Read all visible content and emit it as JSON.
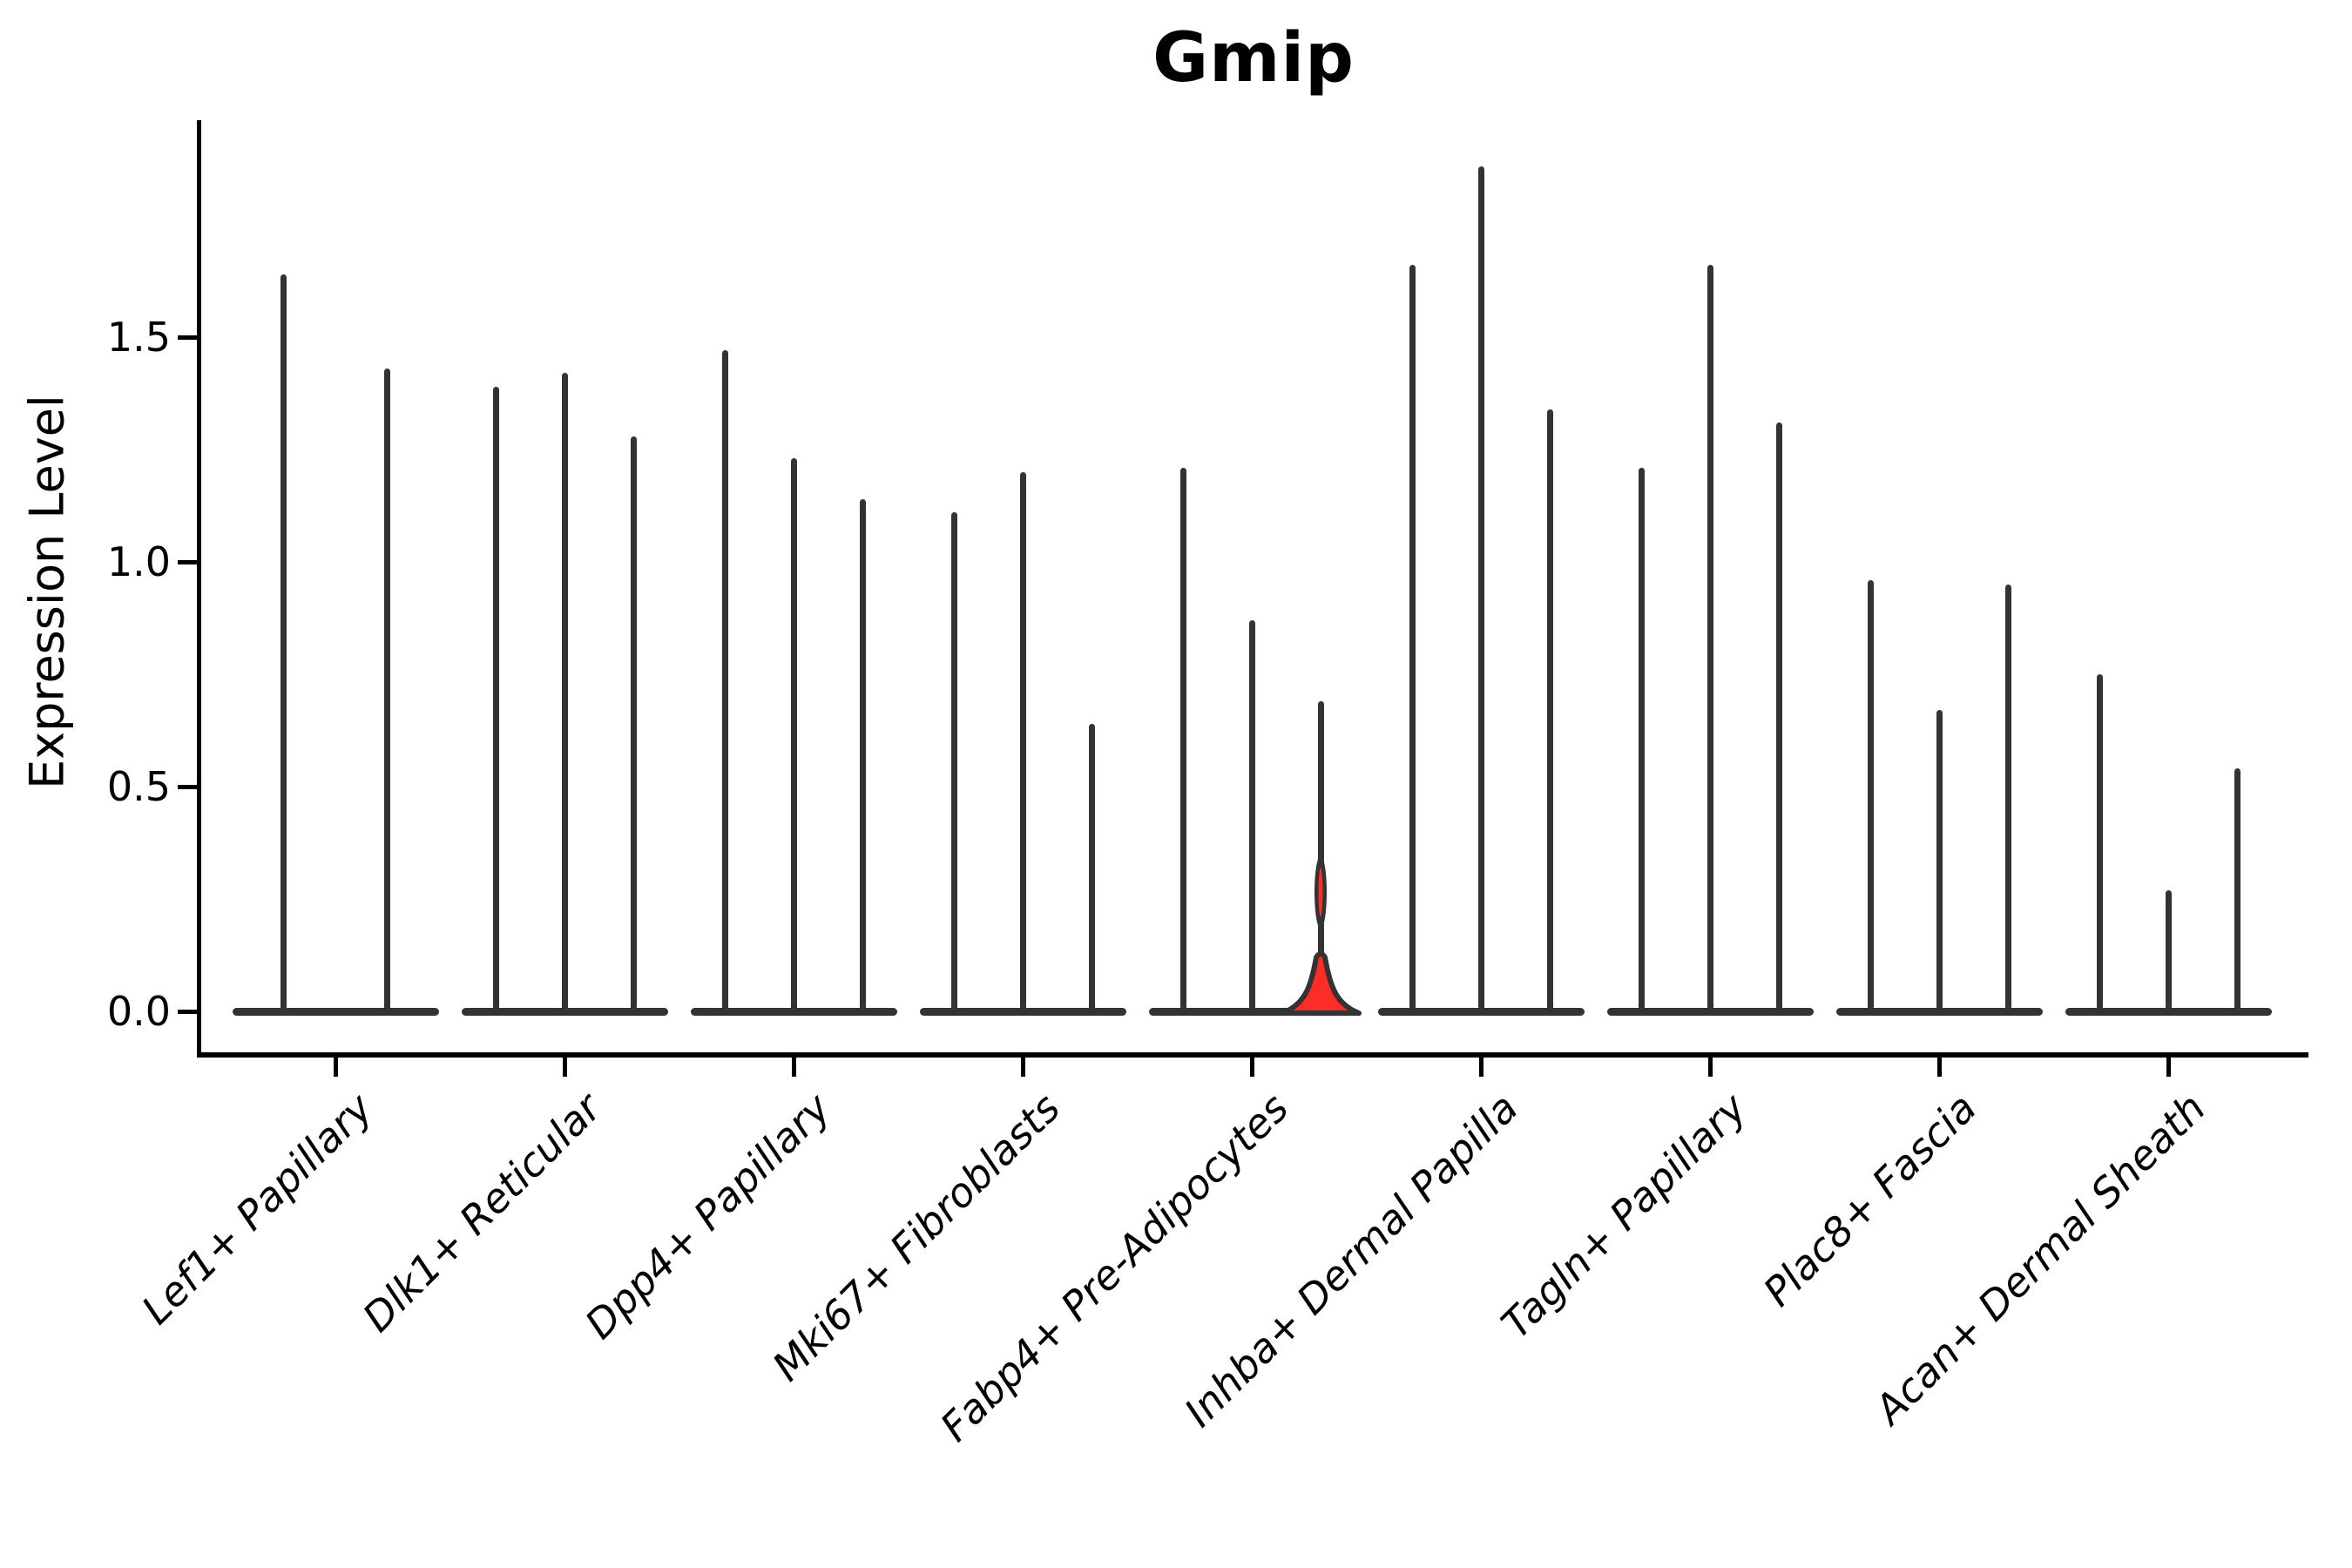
{
  "title": "Gmip",
  "ylabel": "Expression Level",
  "chart_data": {
    "type": "violin",
    "title": "Gmip",
    "xlabel": "",
    "ylabel": "Expression Level",
    "ytick_labels": [
      "0.0",
      "0.5",
      "1.0",
      "1.5"
    ],
    "ytick_values": [
      0.0,
      0.5,
      1.0,
      1.5
    ],
    "ylim": [
      0.0,
      1.98
    ],
    "grid": "off",
    "legend": "none",
    "violin_stroke_color": "#333333",
    "axis_color": "#000000",
    "highlight_fill_color": "#fb2d26",
    "note": "Each violin collapses to a flat pancake at 0 with a thin density spike up to its maximum expression value; the highlighted violin has a red-filled body near 0 and a small bulge around 0.26",
    "groups": [
      {
        "label": "Lef1+ Papillary",
        "violin_maxima": [
          1.64,
          1.43
        ],
        "highlight_index": -1
      },
      {
        "label": "Dlk1+ Reticular",
        "violin_maxima": [
          1.39,
          1.42,
          1.28
        ],
        "highlight_index": -1
      },
      {
        "label": "Dpp4+ Papillary",
        "violin_maxima": [
          1.47,
          1.23,
          1.14
        ],
        "highlight_index": -1
      },
      {
        "label": "Mki67+ Fibroblasts",
        "violin_maxima": [
          1.11,
          1.2,
          0.64
        ],
        "highlight_index": -1
      },
      {
        "label": "Fabp4+ Pre-Adipocytes",
        "violin_maxima": [
          1.21,
          0.87,
          0.69
        ],
        "highlight_index": 2
      },
      {
        "label": "Inhba+ Dermal Papilla",
        "violin_maxima": [
          1.66,
          1.88,
          1.34
        ],
        "highlight_index": -1
      },
      {
        "label": "Tagln+ Papillary",
        "violin_maxima": [
          1.21,
          1.66,
          1.31
        ],
        "highlight_index": -1
      },
      {
        "label": "Plac8+ Fascia",
        "violin_maxima": [
          0.96,
          0.67,
          0.95
        ],
        "highlight_index": -1
      },
      {
        "label": "Acan+ Dermal Sheath",
        "violin_maxima": [
          0.75,
          0.27,
          0.54
        ],
        "highlight_index": -1
      }
    ]
  }
}
